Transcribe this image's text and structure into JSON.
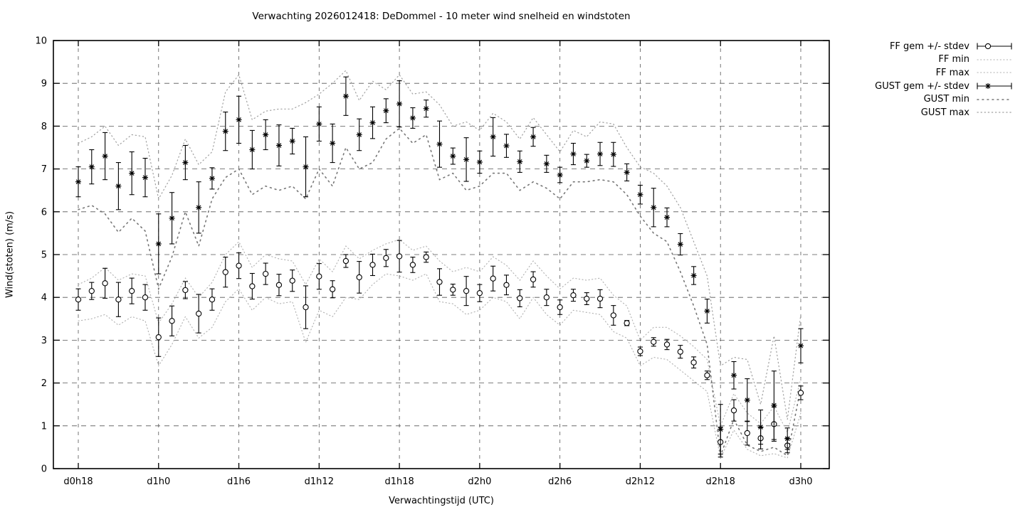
{
  "chart_data": {
    "type": "line",
    "title": "Verwachting 2026012418: DeDommel - 10 meter wind snelheid en windstoten",
    "xlabel": "Verwachtingstijd (UTC)",
    "ylabel": "Wind(stoten) (m/s)",
    "ylim": [
      0,
      10
    ],
    "yticks": [
      0,
      1,
      2,
      3,
      4,
      5,
      6,
      7,
      8,
      9,
      10
    ],
    "grid": true,
    "legend_position": "outside-top-right",
    "x_unit": "hours from d0h18, hourly points",
    "xticks": [
      {
        "hour": 0,
        "label": "d0h18"
      },
      {
        "hour": 6,
        "label": "d1h0"
      },
      {
        "hour": 12,
        "label": "d1h6"
      },
      {
        "hour": 18,
        "label": "d1h12"
      },
      {
        "hour": 24,
        "label": "d1h18"
      },
      {
        "hour": 30,
        "label": "d2h0"
      },
      {
        "hour": 36,
        "label": "d2h6"
      },
      {
        "hour": 42,
        "label": "d2h12"
      },
      {
        "hour": 48,
        "label": "d2h18"
      },
      {
        "hour": 54,
        "label": "d3h0"
      }
    ],
    "colors": {
      "foreground": "#000000",
      "fine_dots": "#b0b0b0",
      "mid_dots": "#a0a0a0",
      "sparse_dots": "#777777",
      "grid": "#555555"
    },
    "series": [
      {
        "key": "ff_gem",
        "label": "FF gem +/- stdev",
        "style": "errorbar-circle",
        "color": "#000000",
        "mean": [
          3.95,
          4.15,
          4.33,
          3.95,
          4.15,
          4.0,
          3.07,
          3.45,
          4.17,
          3.62,
          3.95,
          4.59,
          4.74,
          4.26,
          4.55,
          4.29,
          4.39,
          3.77,
          4.49,
          4.19,
          4.85,
          4.47,
          4.76,
          4.92,
          4.96,
          4.76,
          4.94,
          4.36,
          4.18,
          4.15,
          4.1,
          4.44,
          4.29,
          3.98,
          4.42,
          4.0,
          3.77,
          4.05,
          3.97,
          3.97,
          3.58,
          3.4,
          2.74,
          2.96,
          2.9,
          2.73,
          2.48,
          2.18,
          0.62,
          1.36,
          0.83,
          0.71,
          1.04,
          0.54,
          1.77
        ],
        "stdev": [
          0.25,
          0.2,
          0.35,
          0.4,
          0.3,
          0.3,
          0.45,
          0.35,
          0.2,
          0.45,
          0.25,
          0.35,
          0.3,
          0.3,
          0.25,
          0.25,
          0.25,
          0.5,
          0.3,
          0.2,
          0.15,
          0.37,
          0.25,
          0.2,
          0.37,
          0.18,
          0.12,
          0.31,
          0.13,
          0.34,
          0.2,
          0.29,
          0.23,
          0.2,
          0.18,
          0.19,
          0.17,
          0.14,
          0.14,
          0.21,
          0.23,
          0.06,
          0.1,
          0.1,
          0.12,
          0.15,
          0.13,
          0.1,
          0.35,
          0.25,
          0.28,
          0.25,
          0.4,
          0.17,
          0.16
        ]
      },
      {
        "key": "ff_min",
        "label": "FF min",
        "style": "dotted-fine",
        "color": "#b0b0b0",
        "values": [
          3.45,
          3.5,
          3.6,
          3.35,
          3.55,
          3.45,
          2.4,
          2.9,
          3.55,
          3.05,
          3.3,
          3.9,
          4.2,
          3.7,
          4.0,
          3.85,
          3.9,
          2.95,
          3.7,
          3.55,
          4.0,
          3.95,
          4.3,
          4.55,
          4.5,
          4.4,
          4.55,
          3.9,
          3.85,
          3.6,
          3.7,
          4.0,
          3.9,
          3.5,
          4.0,
          3.6,
          3.35,
          3.7,
          3.65,
          3.6,
          3.2,
          3.05,
          2.4,
          2.6,
          2.55,
          2.3,
          2.05,
          1.8,
          0.25,
          0.9,
          0.45,
          0.3,
          0.35,
          0.25,
          1.3
        ]
      },
      {
        "key": "ff_max",
        "label": "FF max",
        "style": "dotted-fine",
        "color": "#b0b0b0",
        "values": [
          4.3,
          4.45,
          4.7,
          4.4,
          4.55,
          4.5,
          3.4,
          3.85,
          4.45,
          4.0,
          4.35,
          5.0,
          5.3,
          4.7,
          5.0,
          4.9,
          4.85,
          4.3,
          4.9,
          4.6,
          5.2,
          4.9,
          5.1,
          5.25,
          5.35,
          5.1,
          5.2,
          4.85,
          4.6,
          4.7,
          4.6,
          4.95,
          4.75,
          4.4,
          4.85,
          4.5,
          4.2,
          4.45,
          4.4,
          4.45,
          4.05,
          3.8,
          3.0,
          3.3,
          3.3,
          3.1,
          2.85,
          2.55,
          1.0,
          1.75,
          1.3,
          1.05,
          1.45,
          0.85,
          2.1
        ]
      },
      {
        "key": "gust_gem",
        "label": "GUST gem +/- stdev",
        "style": "errorbar-star",
        "color": "#000000",
        "mean": [
          6.7,
          7.05,
          7.3,
          6.6,
          6.9,
          6.8,
          5.25,
          5.85,
          7.15,
          6.1,
          6.78,
          7.88,
          8.15,
          7.45,
          7.8,
          7.55,
          7.65,
          7.05,
          8.05,
          7.6,
          8.7,
          7.8,
          8.08,
          8.36,
          8.52,
          8.19,
          8.41,
          7.58,
          7.3,
          7.22,
          7.16,
          7.75,
          7.54,
          7.17,
          7.75,
          7.12,
          6.86,
          7.35,
          7.19,
          7.35,
          7.34,
          6.92,
          6.4,
          6.1,
          5.87,
          5.24,
          4.51,
          3.68,
          0.92,
          2.18,
          1.6,
          0.97,
          1.48,
          0.7,
          2.87
        ],
        "stdev": [
          0.35,
          0.4,
          0.55,
          0.55,
          0.5,
          0.45,
          0.7,
          0.6,
          0.4,
          0.6,
          0.25,
          0.45,
          0.55,
          0.45,
          0.35,
          0.48,
          0.3,
          0.7,
          0.4,
          0.45,
          0.45,
          0.37,
          0.37,
          0.28,
          0.54,
          0.24,
          0.2,
          0.54,
          0.19,
          0.51,
          0.26,
          0.45,
          0.27,
          0.25,
          0.22,
          0.2,
          0.18,
          0.25,
          0.15,
          0.27,
          0.28,
          0.2,
          0.22,
          0.45,
          0.22,
          0.25,
          0.21,
          0.28,
          0.58,
          0.32,
          0.5,
          0.4,
          0.8,
          0.25,
          0.4
        ]
      },
      {
        "key": "gust_min",
        "label": "GUST min",
        "style": "dotted-sparse",
        "color": "#777777",
        "values": [
          6.05,
          6.15,
          5.95,
          5.52,
          5.85,
          5.55,
          4.2,
          4.95,
          6.0,
          5.2,
          6.3,
          6.8,
          7.0,
          6.4,
          6.6,
          6.5,
          6.6,
          6.3,
          7.0,
          6.6,
          7.5,
          7.0,
          7.15,
          7.7,
          7.95,
          7.6,
          7.8,
          6.75,
          6.9,
          6.5,
          6.6,
          6.9,
          6.9,
          6.5,
          6.7,
          6.55,
          6.3,
          6.7,
          6.7,
          6.75,
          6.7,
          6.4,
          5.9,
          5.5,
          5.3,
          4.6,
          3.8,
          2.9,
          0.3,
          1.15,
          0.55,
          0.4,
          0.5,
          0.3,
          1.9
        ]
      },
      {
        "key": "gust_max",
        "label": "GUST max",
        "style": "dotted-mid",
        "color": "#a0a0a0",
        "values": [
          7.6,
          7.75,
          8.0,
          7.55,
          7.8,
          7.75,
          6.3,
          6.85,
          7.7,
          7.1,
          7.4,
          8.8,
          9.2,
          8.15,
          8.35,
          8.4,
          8.4,
          8.55,
          8.75,
          9.0,
          9.3,
          8.6,
          9.05,
          8.85,
          9.2,
          8.75,
          8.8,
          8.5,
          8.0,
          8.1,
          7.9,
          8.3,
          8.1,
          7.7,
          8.2,
          7.8,
          7.4,
          7.9,
          7.75,
          8.1,
          8.05,
          7.5,
          7.05,
          6.9,
          6.6,
          6.1,
          5.3,
          4.5,
          2.4,
          2.6,
          2.55,
          1.5,
          3.1,
          1.15,
          3.6
        ]
      }
    ]
  }
}
